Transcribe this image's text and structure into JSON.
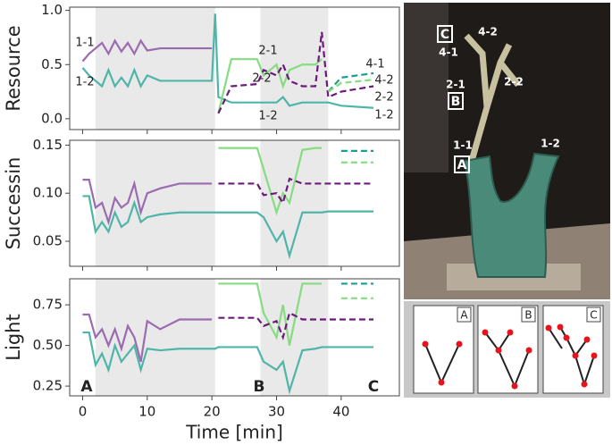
{
  "chart_data": [
    {
      "type": "line",
      "ylabel": "Resource",
      "x": [
        0,
        1,
        2,
        3,
        4,
        5,
        6,
        7,
        8,
        9,
        10,
        12,
        15,
        20,
        20.5,
        21,
        23,
        27,
        28,
        30,
        31,
        32,
        34,
        36,
        37,
        38,
        40,
        45
      ],
      "xlim": [
        -2,
        49
      ],
      "xticks": [
        0,
        10,
        20,
        30,
        40
      ],
      "ylim": [
        -0.1,
        1.03
      ],
      "yticks": [
        {
          "value": 0,
          "label": "0.0"
        },
        0.5,
        {
          "value": 1,
          "label": "1.0"
        }
      ],
      "shaded": [
        [
          2,
          20.5
        ],
        [
          27.5,
          38
        ]
      ],
      "series": [
        {
          "name": "1-1",
          "color": "#9b6bb0",
          "values": [
            0.53,
            0.6,
            0.65,
            0.7,
            0.6,
            0.72,
            0.62,
            0.7,
            0.6,
            0.72,
            0.63,
            0.65,
            0.65,
            0.65,
            null,
            null,
            null,
            null,
            null,
            null,
            null,
            null,
            null,
            null,
            null,
            null,
            null,
            null
          ]
        },
        {
          "name": "1-2",
          "color": "#4fb5a8",
          "values": [
            0.47,
            0.4,
            0.35,
            0.3,
            0.45,
            0.3,
            0.38,
            0.3,
            0.45,
            0.3,
            0.4,
            0.35,
            0.35,
            0.35,
            0.97,
            0.2,
            0.15,
            0.15,
            0.15,
            0.15,
            0.2,
            0.12,
            0.15,
            0.15,
            0.15,
            0.15,
            0.12,
            0.1
          ]
        },
        {
          "name": "2-1",
          "color": "#86dc80",
          "values": [
            null,
            null,
            null,
            null,
            null,
            null,
            null,
            null,
            null,
            null,
            null,
            null,
            null,
            null,
            null,
            0.05,
            0.55,
            0.55,
            0.4,
            0.5,
            0.3,
            0.45,
            0.5,
            0.5,
            0.55,
            null,
            null,
            null
          ]
        },
        {
          "name": "2-2",
          "color": "#6a1b7a",
          "dashed": true,
          "values": [
            null,
            null,
            null,
            null,
            null,
            null,
            null,
            null,
            null,
            null,
            null,
            null,
            null,
            null,
            null,
            0.05,
            0.3,
            0.32,
            0.45,
            0.4,
            0.5,
            0.35,
            0.3,
            0.3,
            0.8,
            0.2,
            0.25,
            0.3
          ]
        },
        {
          "name": "4-1",
          "color": "#1a9e8f",
          "dashed": true,
          "values": [
            null,
            null,
            null,
            null,
            null,
            null,
            null,
            null,
            null,
            null,
            null,
            null,
            null,
            null,
            null,
            null,
            null,
            null,
            null,
            null,
            null,
            null,
            null,
            null,
            null,
            0.25,
            0.38,
            0.42
          ]
        },
        {
          "name": "4-2",
          "color": "#86dc80",
          "dashed": true,
          "values": [
            null,
            null,
            null,
            null,
            null,
            null,
            null,
            null,
            null,
            null,
            null,
            null,
            null,
            null,
            null,
            null,
            null,
            null,
            null,
            null,
            null,
            null,
            null,
            null,
            null,
            0.25,
            0.33,
            0.36
          ]
        }
      ],
      "annotations": [
        "1-2",
        "2-2",
        "1-2"
      ]
    },
    {
      "type": "line",
      "ylabel": "Successin",
      "x": [
        0,
        1,
        2,
        3,
        4,
        5,
        6,
        7,
        8,
        9,
        10,
        12,
        15,
        20,
        20.5,
        21,
        23,
        27,
        28,
        30,
        31,
        32,
        34,
        36,
        37,
        38,
        40,
        45
      ],
      "xlim": [
        -2,
        49
      ],
      "xticks": [
        0,
        10,
        20,
        30,
        40
      ],
      "ylim": [
        0.024,
        0.155
      ],
      "yticks": [
        0.05,
        {
          "value": 0.1,
          "label": "0.10"
        },
        0.15
      ],
      "shaded": [
        [
          2,
          20.5
        ],
        [
          27.5,
          38
        ]
      ],
      "series": [
        {
          "color": "#9b6bb0",
          "values": [
            0.114,
            0.114,
            0.085,
            0.09,
            0.07,
            0.095,
            0.085,
            0.09,
            0.11,
            0.08,
            0.1,
            0.105,
            0.11,
            0.11,
            null,
            null,
            null,
            null,
            null,
            null,
            null,
            null,
            null,
            null,
            null,
            null,
            null,
            null
          ]
        },
        {
          "color": "#4fb5a8",
          "values": [
            0.097,
            0.097,
            0.06,
            0.07,
            0.06,
            0.08,
            0.065,
            0.07,
            0.09,
            0.07,
            0.075,
            0.078,
            0.08,
            0.08,
            0.08,
            0.08,
            0.08,
            0.08,
            0.075,
            0.05,
            0.06,
            0.035,
            0.08,
            0.08,
            0.08,
            0.081,
            0.081,
            0.081
          ]
        },
        {
          "color": "#86dc80",
          "values": [
            null,
            null,
            null,
            null,
            null,
            null,
            null,
            null,
            null,
            null,
            null,
            null,
            null,
            null,
            null,
            0.147,
            0.147,
            0.147,
            0.125,
            0.08,
            0.1,
            0.09,
            0.145,
            0.147,
            0.147,
            null,
            null,
            null
          ]
        },
        {
          "color": "#6a1b7a",
          "dashed": true,
          "values": [
            null,
            null,
            null,
            null,
            null,
            null,
            null,
            null,
            null,
            null,
            null,
            null,
            null,
            null,
            null,
            0.11,
            0.11,
            0.11,
            0.098,
            0.1,
            0.09,
            0.115,
            0.11,
            0.11,
            0.11,
            0.11,
            0.11,
            0.11
          ]
        },
        {
          "color": "#1a9e8f",
          "dashed": true,
          "values": [
            null,
            null,
            null,
            null,
            null,
            null,
            null,
            null,
            null,
            null,
            null,
            null,
            null,
            null,
            null,
            null,
            null,
            null,
            null,
            null,
            null,
            null,
            null,
            null,
            null,
            null,
            0.144,
            0.144
          ]
        },
        {
          "color": "#86dc80",
          "dashed": true,
          "values": [
            null,
            null,
            null,
            null,
            null,
            null,
            null,
            null,
            null,
            null,
            null,
            null,
            null,
            null,
            null,
            null,
            null,
            null,
            null,
            null,
            null,
            null,
            null,
            null,
            null,
            null,
            0.132,
            0.132
          ]
        }
      ]
    },
    {
      "type": "line",
      "ylabel": "Light",
      "xlabel": "Time [min]",
      "x": [
        0,
        1,
        2,
        3,
        4,
        5,
        6,
        7,
        8,
        9,
        10,
        12,
        15,
        20,
        20.5,
        21,
        23,
        27,
        28,
        30,
        31,
        32,
        34,
        36,
        37,
        38,
        40,
        45
      ],
      "xlim": [
        -2,
        49
      ],
      "xticks": [
        0,
        10,
        20,
        30,
        40
      ],
      "ylim": [
        0.19,
        0.91
      ],
      "yticks": [
        0.25,
        {
          "value": 0.5,
          "label": "0.50"
        },
        0.75
      ],
      "shaded": [
        [
          2,
          20.5
        ],
        [
          27.5,
          38
        ]
      ],
      "series": [
        {
          "color": "#9b6bb0",
          "values": [
            0.69,
            0.69,
            0.55,
            0.6,
            0.5,
            0.6,
            0.48,
            0.62,
            0.55,
            0.4,
            0.65,
            0.6,
            0.66,
            0.66,
            null,
            null,
            null,
            null,
            null,
            null,
            null,
            null,
            null,
            null,
            null,
            null,
            null,
            null
          ]
        },
        {
          "color": "#4fb5a8",
          "values": [
            0.58,
            0.58,
            0.38,
            0.45,
            0.35,
            0.5,
            0.4,
            0.45,
            0.5,
            0.35,
            0.48,
            0.47,
            0.48,
            0.48,
            0.48,
            0.49,
            0.49,
            0.49,
            0.4,
            0.35,
            0.4,
            0.22,
            0.47,
            0.48,
            0.49,
            0.49,
            0.49,
            0.49
          ]
        },
        {
          "color": "#86dc80",
          "values": [
            null,
            null,
            null,
            null,
            null,
            null,
            null,
            null,
            null,
            null,
            null,
            null,
            null,
            null,
            null,
            0.88,
            0.88,
            0.88,
            0.7,
            0.55,
            0.75,
            0.5,
            0.88,
            0.88,
            0.88,
            null,
            null,
            null
          ]
        },
        {
          "color": "#6a1b7a",
          "dashed": true,
          "values": [
            null,
            null,
            null,
            null,
            null,
            null,
            null,
            null,
            null,
            null,
            null,
            null,
            null,
            null,
            null,
            0.67,
            0.67,
            0.67,
            0.62,
            0.65,
            0.55,
            0.7,
            0.66,
            0.66,
            0.66,
            0.66,
            0.66,
            0.66
          ]
        },
        {
          "color": "#1a9e8f",
          "dashed": true,
          "values": [
            null,
            null,
            null,
            null,
            null,
            null,
            null,
            null,
            null,
            null,
            null,
            null,
            null,
            null,
            null,
            null,
            null,
            null,
            null,
            null,
            null,
            null,
            null,
            null,
            null,
            null,
            0.88,
            0.88
          ]
        },
        {
          "color": "#86dc80",
          "dashed": true,
          "values": [
            null,
            null,
            null,
            null,
            null,
            null,
            null,
            null,
            null,
            null,
            null,
            null,
            null,
            null,
            null,
            null,
            null,
            null,
            null,
            null,
            null,
            null,
            null,
            null,
            null,
            null,
            0.79,
            0.79
          ]
        }
      ],
      "markers": [
        "A",
        "B",
        "C"
      ]
    }
  ],
  "photo": {
    "labels": [
      "C",
      "4-2",
      "4-1",
      "2-1",
      "B",
      "2-2",
      "1-1",
      "A",
      "1-2"
    ]
  },
  "diagrams": [
    "A",
    "B",
    "C"
  ]
}
